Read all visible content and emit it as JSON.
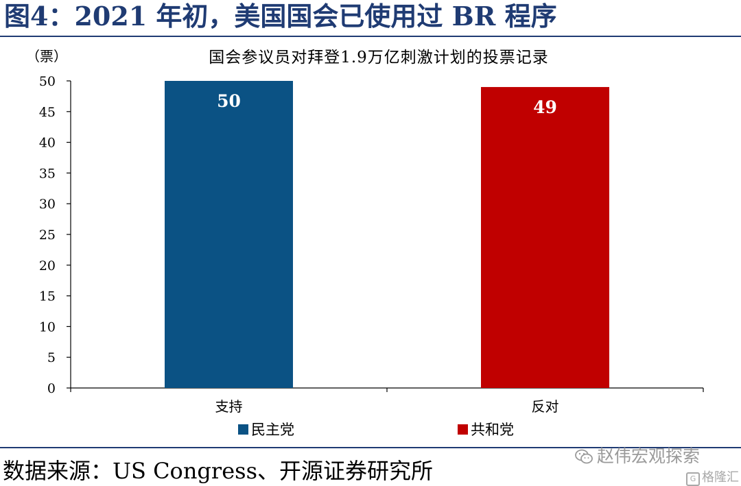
{
  "figure": {
    "title": "图4：2021 年初，美国国会已使用过 BR 程序",
    "source": "数据来源：US Congress、开源证券研究所",
    "watermark": "赵伟宏观探索",
    "watermark_secondary": "格隆汇"
  },
  "chart_data": {
    "type": "bar",
    "title": "国会参议员对拜登1.9万亿刺激计划的投票记录",
    "unit_label": "（票）",
    "ylim": [
      0,
      50
    ],
    "yticks": [
      0,
      5,
      10,
      15,
      20,
      25,
      30,
      35,
      40,
      45,
      50
    ],
    "categories": [
      "支持",
      "反对"
    ],
    "series": [
      {
        "name": "民主党",
        "values": [
          50,
          null
        ],
        "color": "#0b5284"
      },
      {
        "name": "共和党",
        "values": [
          null,
          49
        ],
        "color": "#c00000"
      }
    ],
    "data_labels_color": "#ffffff",
    "legend": "bottom-left",
    "grid": false
  }
}
